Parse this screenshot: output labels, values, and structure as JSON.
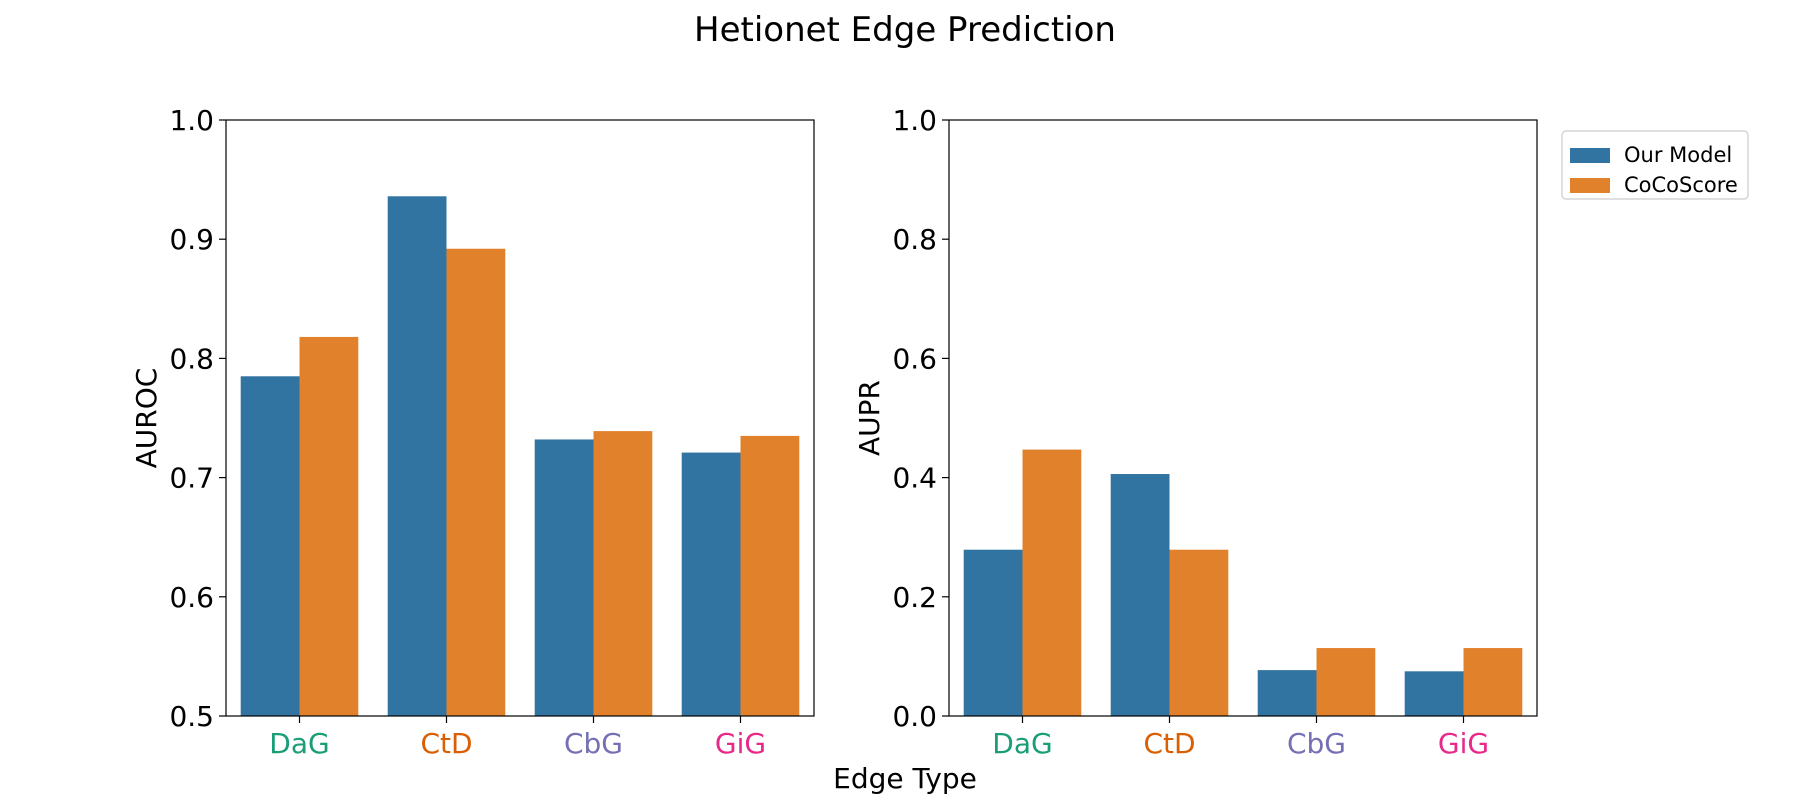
{
  "figure": {
    "title": "Hetionet Edge Prediction",
    "shared_xlabel": "Edge Type"
  },
  "colors": {
    "series": [
      "#3274a1",
      "#e1812c"
    ],
    "category_labels": [
      "#1b9e77",
      "#d95f02",
      "#7570b3",
      "#e7298a"
    ]
  },
  "legend": {
    "placement": "outside top-right",
    "entries": [
      "Our Model",
      "CoCoScore"
    ]
  },
  "chart_data": [
    {
      "type": "bar",
      "categories": [
        "DaG",
        "CtD",
        "CbG",
        "GiG"
      ],
      "series": [
        {
          "name": "Our Model",
          "values": [
            0.785,
            0.936,
            0.732,
            0.721
          ]
        },
        {
          "name": "CoCoScore",
          "values": [
            0.818,
            0.892,
            0.739,
            0.735
          ]
        }
      ],
      "ylabel": "AUROC",
      "ylim": [
        0.5,
        1.0
      ],
      "yticks": [
        "0.5",
        "0.6",
        "0.7",
        "0.8",
        "0.9",
        "1.0"
      ],
      "grid": false
    },
    {
      "type": "bar",
      "categories": [
        "DaG",
        "CtD",
        "CbG",
        "GiG"
      ],
      "series": [
        {
          "name": "Our Model",
          "values": [
            0.279,
            0.406,
            0.077,
            0.075
          ]
        },
        {
          "name": "CoCoScore",
          "values": [
            0.447,
            0.279,
            0.114,
            0.114
          ]
        }
      ],
      "ylabel": "AUPR",
      "ylim": [
        0.0,
        1.0
      ],
      "yticks": [
        "0.0",
        "0.2",
        "0.4",
        "0.6",
        "0.8",
        "1.0"
      ],
      "grid": false
    }
  ]
}
